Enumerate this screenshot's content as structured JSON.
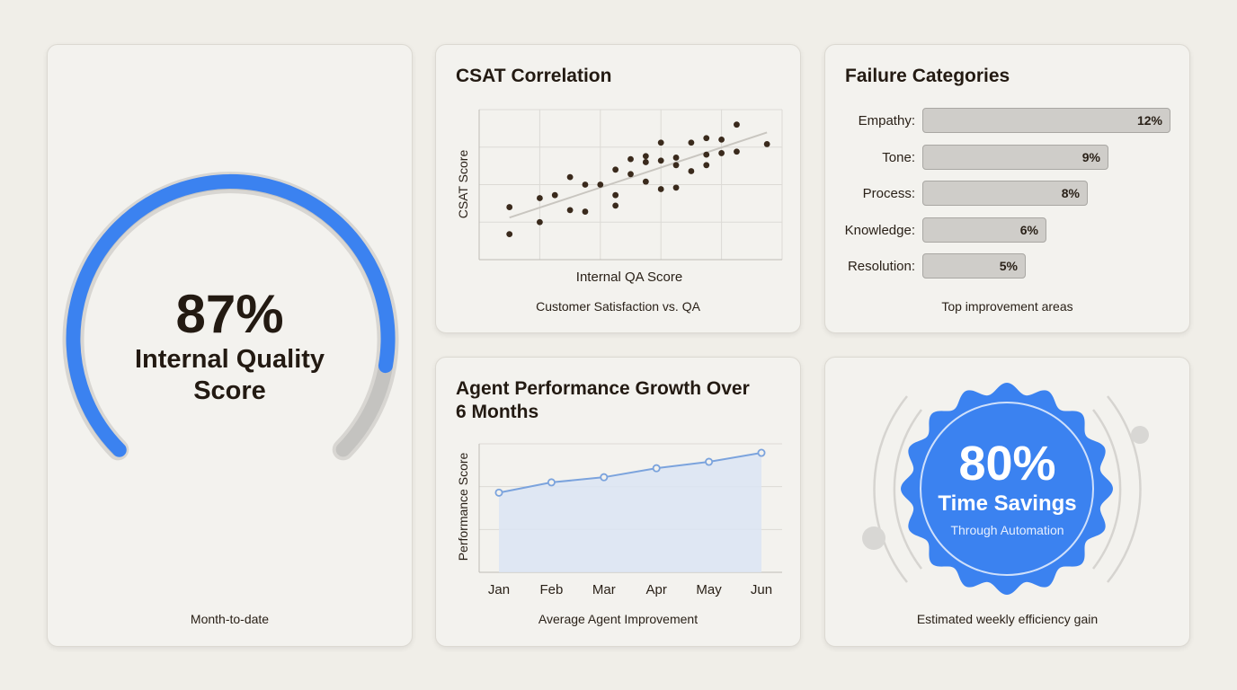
{
  "quality": {
    "value_text": "87%",
    "value": 87,
    "label_line1": "Internal Quality",
    "label_line2": "Score",
    "caption": "Month-to-date"
  },
  "colors": {
    "accent": "#3b82f0",
    "track": "#c4c3c0",
    "dot": "#3a2a1c",
    "badge": "#3b82f0"
  },
  "chart_data": [
    {
      "type": "scatter",
      "title": "CSAT Correlation",
      "xlabel": "Internal QA Score",
      "ylabel": "CSAT Score",
      "xlim": [
        0,
        100
      ],
      "ylim": [
        0,
        100
      ],
      "grid": true,
      "trendline": true,
      "points": [
        [
          10,
          17
        ],
        [
          10,
          35
        ],
        [
          20,
          25
        ],
        [
          20,
          41
        ],
        [
          25,
          43
        ],
        [
          30,
          33
        ],
        [
          30,
          55
        ],
        [
          35,
          32
        ],
        [
          35,
          50
        ],
        [
          40,
          50
        ],
        [
          45,
          36
        ],
        [
          45,
          43
        ],
        [
          45,
          60
        ],
        [
          50,
          57
        ],
        [
          50,
          67
        ],
        [
          55,
          52
        ],
        [
          55,
          65
        ],
        [
          55,
          69
        ],
        [
          60,
          47
        ],
        [
          60,
          66
        ],
        [
          60,
          78
        ],
        [
          65,
          48
        ],
        [
          65,
          68
        ],
        [
          65,
          63
        ],
        [
          70,
          59
        ],
        [
          70,
          78
        ],
        [
          75,
          70
        ],
        [
          75,
          63
        ],
        [
          75,
          81
        ],
        [
          80,
          71
        ],
        [
          80,
          80
        ],
        [
          85,
          72
        ],
        [
          85,
          90
        ],
        [
          95,
          77
        ]
      ],
      "caption": "Customer Satisfaction vs. QA"
    },
    {
      "type": "bar",
      "orientation": "horizontal",
      "title": "Failure Categories",
      "categories": [
        "Empathy:",
        "Tone:",
        "Process:",
        "Knowledge:",
        "Resolution:"
      ],
      "values": [
        12,
        9,
        8,
        6,
        5
      ],
      "value_labels": [
        "12%",
        "9%",
        "8%",
        "6%",
        "5%"
      ],
      "xlim": [
        0,
        12
      ],
      "caption": "Top improvement areas"
    },
    {
      "type": "area",
      "title": "Agent Performance Growth Over 6 Months",
      "title_line1": "Agent Performance Growth Over",
      "title_line2": "6 Months",
      "ylabel": "Performance Score",
      "categories": [
        "Jan",
        "Feb",
        "Mar",
        "Apr",
        "May",
        "Jun"
      ],
      "values": [
        62,
        70,
        74,
        81,
        86,
        93
      ],
      "ylim": [
        0,
        100
      ],
      "grid": true,
      "caption": "Average Agent Improvement"
    }
  ],
  "savings": {
    "value_text": "80%",
    "label": "Time Savings",
    "sublabel": "Through Automation",
    "caption": "Estimated weekly efficiency gain"
  }
}
